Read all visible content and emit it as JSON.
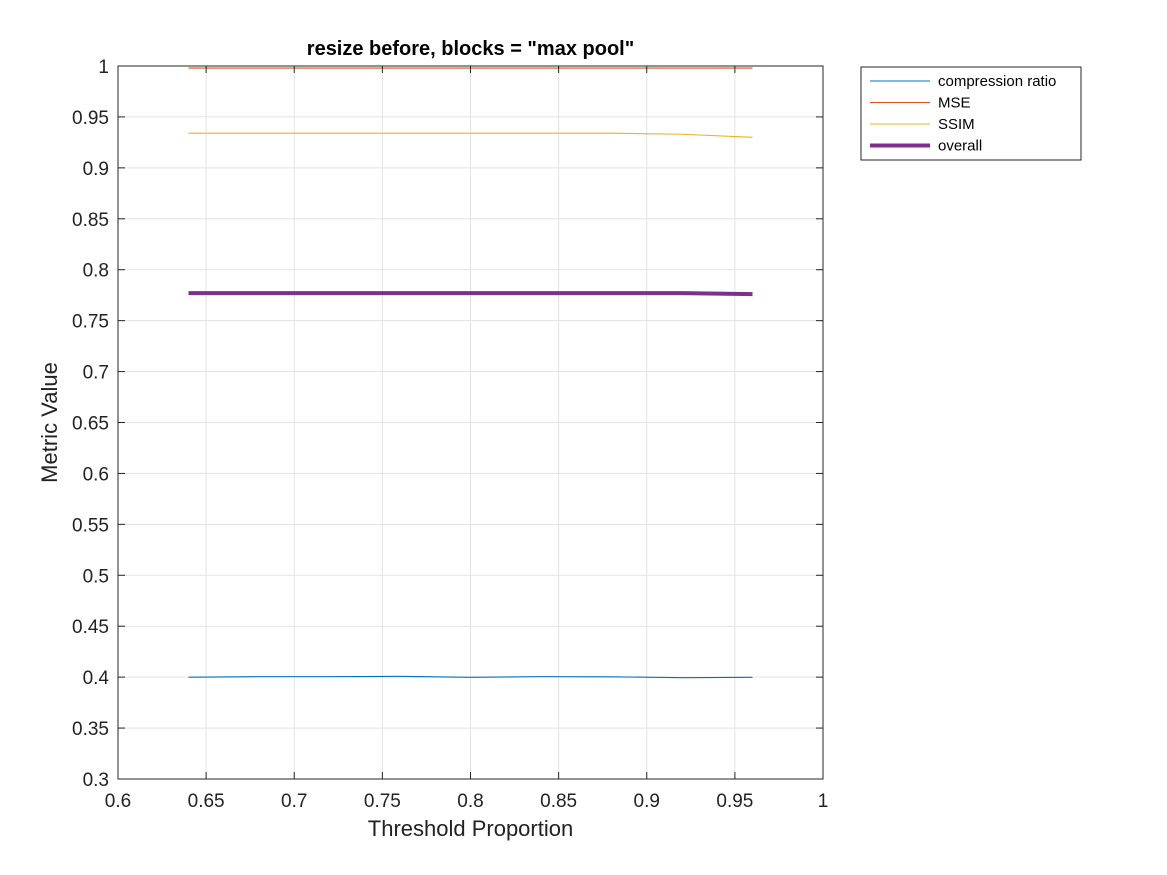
{
  "chart_data": {
    "type": "line",
    "title": "resize before, blocks = \"max pool\"",
    "xlabel": "Threshold Proportion",
    "ylabel": "Metric Value",
    "xlim": [
      0.6,
      1
    ],
    "ylim": [
      0.3,
      1
    ],
    "xticks": [
      0.6,
      0.65,
      0.7,
      0.75,
      0.8,
      0.85,
      0.9,
      0.95,
      1
    ],
    "yticks": [
      0.3,
      0.35,
      0.4,
      0.45,
      0.5,
      0.55,
      0.6,
      0.65,
      0.7,
      0.75,
      0.8,
      0.85,
      0.9,
      0.95,
      1
    ],
    "xtick_labels": [
      "0.6",
      "0.65",
      "0.7",
      "0.75",
      "0.8",
      "0.85",
      "0.9",
      "0.95",
      "1"
    ],
    "ytick_labels": [
      "0.3",
      "0.35",
      "0.4",
      "0.45",
      "0.5",
      "0.55",
      "0.6",
      "0.65",
      "0.7",
      "0.75",
      "0.8",
      "0.85",
      "0.9",
      "0.95",
      "1"
    ],
    "grid": true,
    "legend_position": "outside-top-right",
    "x": [
      0.64,
      0.68,
      0.72,
      0.76,
      0.8,
      0.84,
      0.88,
      0.92,
      0.96
    ],
    "series": [
      {
        "name": "compression ratio",
        "color": "#0072BD",
        "width": "thin",
        "values": [
          0.4,
          0.4005,
          0.4005,
          0.4008,
          0.3998,
          0.4005,
          0.4003,
          0.3995,
          0.3998
        ]
      },
      {
        "name": "MSE",
        "color": "#D95319",
        "width": "thin",
        "values": [
          0.998,
          0.998,
          0.998,
          0.998,
          0.998,
          0.998,
          0.998,
          0.998,
          0.998
        ]
      },
      {
        "name": "SSIM",
        "color": "#EDB120",
        "width": "thin",
        "values": [
          0.934,
          0.934,
          0.934,
          0.934,
          0.934,
          0.934,
          0.934,
          0.933,
          0.93
        ]
      },
      {
        "name": "overall",
        "color": "#7E2F8E",
        "width": "thick",
        "values": [
          0.777,
          0.777,
          0.777,
          0.777,
          0.777,
          0.777,
          0.777,
          0.777,
          0.776
        ]
      }
    ]
  }
}
